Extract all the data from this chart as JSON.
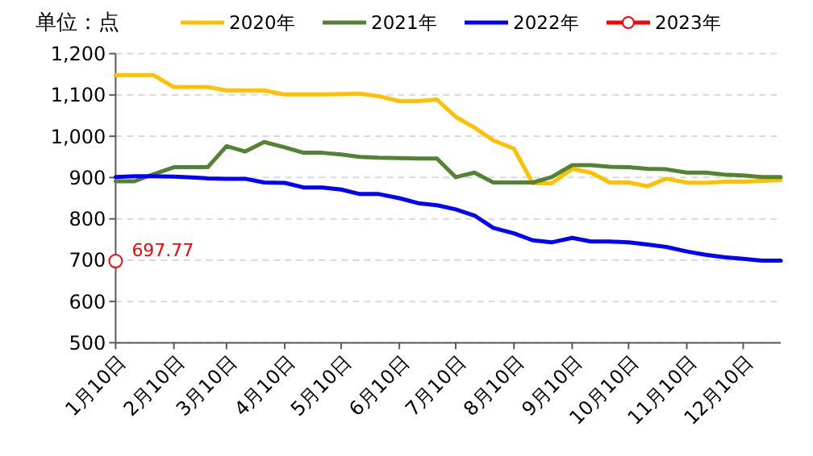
{
  "chart_data": {
    "type": "line",
    "ylabel": "单位：点",
    "x": [
      "--01-10",
      "--01-20",
      "--01-30",
      "--02-10",
      "--02-20",
      "--02-28",
      "--03-10",
      "--03-20",
      "--03-30",
      "--04-10",
      "--04-20",
      "--04-30",
      "--05-10",
      "--05-20",
      "--05-30",
      "--06-10",
      "--06-20",
      "--06-30",
      "--07-10",
      "--07-20",
      "--07-30",
      "--08-10",
      "--08-20",
      "--08-30",
      "--09-10",
      "--09-20",
      "--09-30",
      "--10-10",
      "--10-20",
      "--10-30",
      "--11-10",
      "--11-20",
      "--11-30",
      "--12-10",
      "--12-20",
      "--12-30"
    ],
    "series": [
      {
        "name": "2020年",
        "color": "#ffc000",
        "values": [
          1148,
          1148,
          1148,
          1119,
          1119,
          1119,
          1111,
          1111,
          1111,
          1101,
          1101,
          1101,
          1102,
          1103,
          1097,
          1085,
          1085,
          1089,
          1047,
          1021,
          990,
          970,
          886,
          886,
          921,
          912,
          888,
          888,
          879,
          897,
          888,
          887,
          890,
          890,
          892,
          894
        ]
      },
      {
        "name": "2021年",
        "color": "#548235",
        "values": [
          891,
          891,
          908,
          925,
          925,
          925,
          976,
          963,
          986,
          973,
          960,
          960,
          956,
          950,
          948,
          947,
          946,
          946,
          901,
          912,
          888,
          888,
          888,
          901,
          930,
          930,
          926,
          925,
          921,
          920,
          912,
          912,
          907,
          905,
          901,
          901
        ]
      },
      {
        "name": "2022年",
        "color": "#0000ff",
        "values": [
          901,
          903,
          903,
          902,
          900,
          898,
          897,
          897,
          888,
          887,
          876,
          876,
          871,
          860,
          860,
          850,
          838,
          833,
          823,
          808,
          778,
          765,
          748,
          743,
          754,
          745,
          745,
          743,
          738,
          732,
          721,
          713,
          707,
          703,
          699,
          699
        ]
      },
      {
        "name": "2023年",
        "color": "#ff0000",
        "marker": "circle",
        "x": [
          "--01-10"
        ],
        "values": [
          697.77
        ],
        "value_labels": [
          "697.77"
        ]
      }
    ],
    "xlim": [
      "--01-10",
      "--12-30"
    ],
    "xticks": [
      {
        "value": "--01-10",
        "label": "1月10日"
      },
      {
        "value": "--02-10",
        "label": "2月10日"
      },
      {
        "value": "--03-10",
        "label": "3月10日"
      },
      {
        "value": "--04-10",
        "label": "4月10日"
      },
      {
        "value": "--05-10",
        "label": "5月10日"
      },
      {
        "value": "--06-10",
        "label": "6月10日"
      },
      {
        "value": "--07-10",
        "label": "7月10日"
      },
      {
        "value": "--08-10",
        "label": "8月10日"
      },
      {
        "value": "--09-10",
        "label": "9月10日"
      },
      {
        "value": "--10-10",
        "label": "10月10日"
      },
      {
        "value": "--11-10",
        "label": "11月10日"
      },
      {
        "value": "--12-10",
        "label": "12月10日"
      }
    ],
    "ylim": [
      500,
      1200
    ],
    "yticks": [
      500,
      600,
      700,
      800,
      900,
      {
        "value": 1000,
        "label": "1,000"
      },
      {
        "value": 1100,
        "label": "1,100"
      },
      {
        "value": 1200,
        "label": "1,200"
      }
    ],
    "grid": "y",
    "legend": "top",
    "marker": "none",
    "line_style": "solid"
  }
}
